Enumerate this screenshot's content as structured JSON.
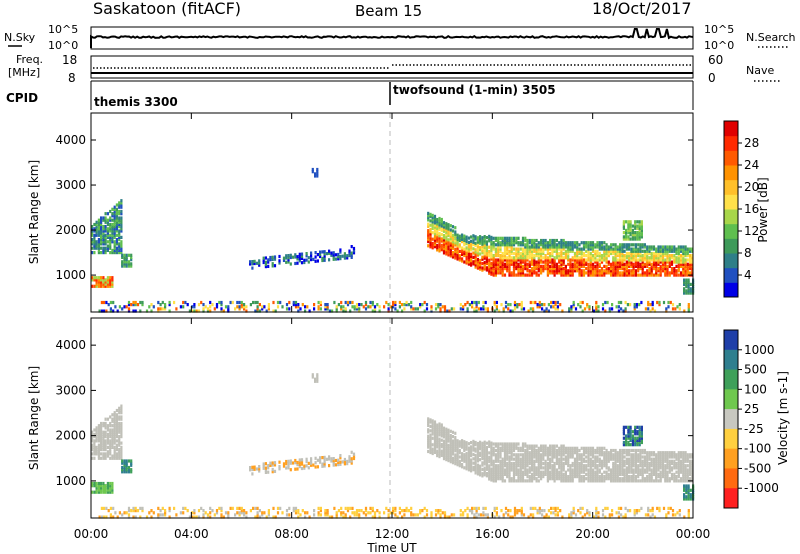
{
  "header": {
    "title": "Saskatoon (fitACF)",
    "beam": "Beam 15",
    "date": "18/Oct/2017"
  },
  "top_panels": {
    "nsky_label": "N.Sky",
    "nsearch_label": "N.Search",
    "nsky_ticks": [
      "10^5",
      "10^0"
    ],
    "nsearch_ticks": [
      "10^5",
      "10^0"
    ],
    "freq_label_1": "Freq.",
    "freq_label_2": "[MHz]",
    "freq_ticks": [
      "18",
      "8"
    ],
    "nave_label": "Nave",
    "nave_ticks": [
      "60",
      "0"
    ],
    "cpid_label": "CPID",
    "cpid_segments": [
      {
        "label": "themis 3300",
        "start_hour": 0
      },
      {
        "label": "twofsound (1-min) 3505",
        "start_hour": 12
      }
    ]
  },
  "chart_data": [
    {
      "type": "heatmap",
      "quantity": "power",
      "ylabel": "Slant Range [km]",
      "xlabel": "Time UT",
      "x_range_hours": [
        0,
        24
      ],
      "x_ticks": [
        "00:00",
        "04:00",
        "08:00",
        "12:00",
        "16:00",
        "20:00",
        "00:00"
      ],
      "ylim": [
        180,
        4600
      ],
      "y_ticks": [
        1000,
        2000,
        3000,
        4000
      ],
      "colorbar": {
        "label": "Power [dB]",
        "range": [
          0,
          32
        ],
        "ticks": [
          "4",
          "8",
          "12",
          "16",
          "20",
          "24",
          "28"
        ],
        "colors": [
          "#0000e6",
          "#2050c0",
          "#2e7f88",
          "#3e9a5a",
          "#5fbf4f",
          "#a8d64a",
          "#ffe14a",
          "#ffc02a",
          "#ff9200",
          "#ff5a00",
          "#ff2a00",
          "#e00000"
        ]
      }
    },
    {
      "type": "heatmap",
      "quantity": "velocity",
      "ylabel": "Slant Range [km]",
      "xlabel": "Time UT",
      "x_range_hours": [
        0,
        24
      ],
      "x_ticks": [
        "00:00",
        "04:00",
        "08:00",
        "12:00",
        "16:00",
        "20:00",
        "00:00"
      ],
      "ylim": [
        180,
        4600
      ],
      "y_ticks": [
        1000,
        2000,
        3000,
        4000
      ],
      "colorbar": {
        "label": "Velocity [m s-1]",
        "ticks": [
          "1000",
          "500",
          "100",
          "25",
          "-25",
          "-100",
          "-500",
          "-1000"
        ],
        "colors": [
          "#1f3fa8",
          "#2f7f8f",
          "#3fa05a",
          "#6fc84f",
          "#c8c8c0",
          "#ffd040",
          "#ffa020",
          "#ff6a10",
          "#ff2020"
        ]
      }
    }
  ],
  "colors": {
    "ground_scatter": "#c0c0b8",
    "divider": "#bbbbbb"
  }
}
